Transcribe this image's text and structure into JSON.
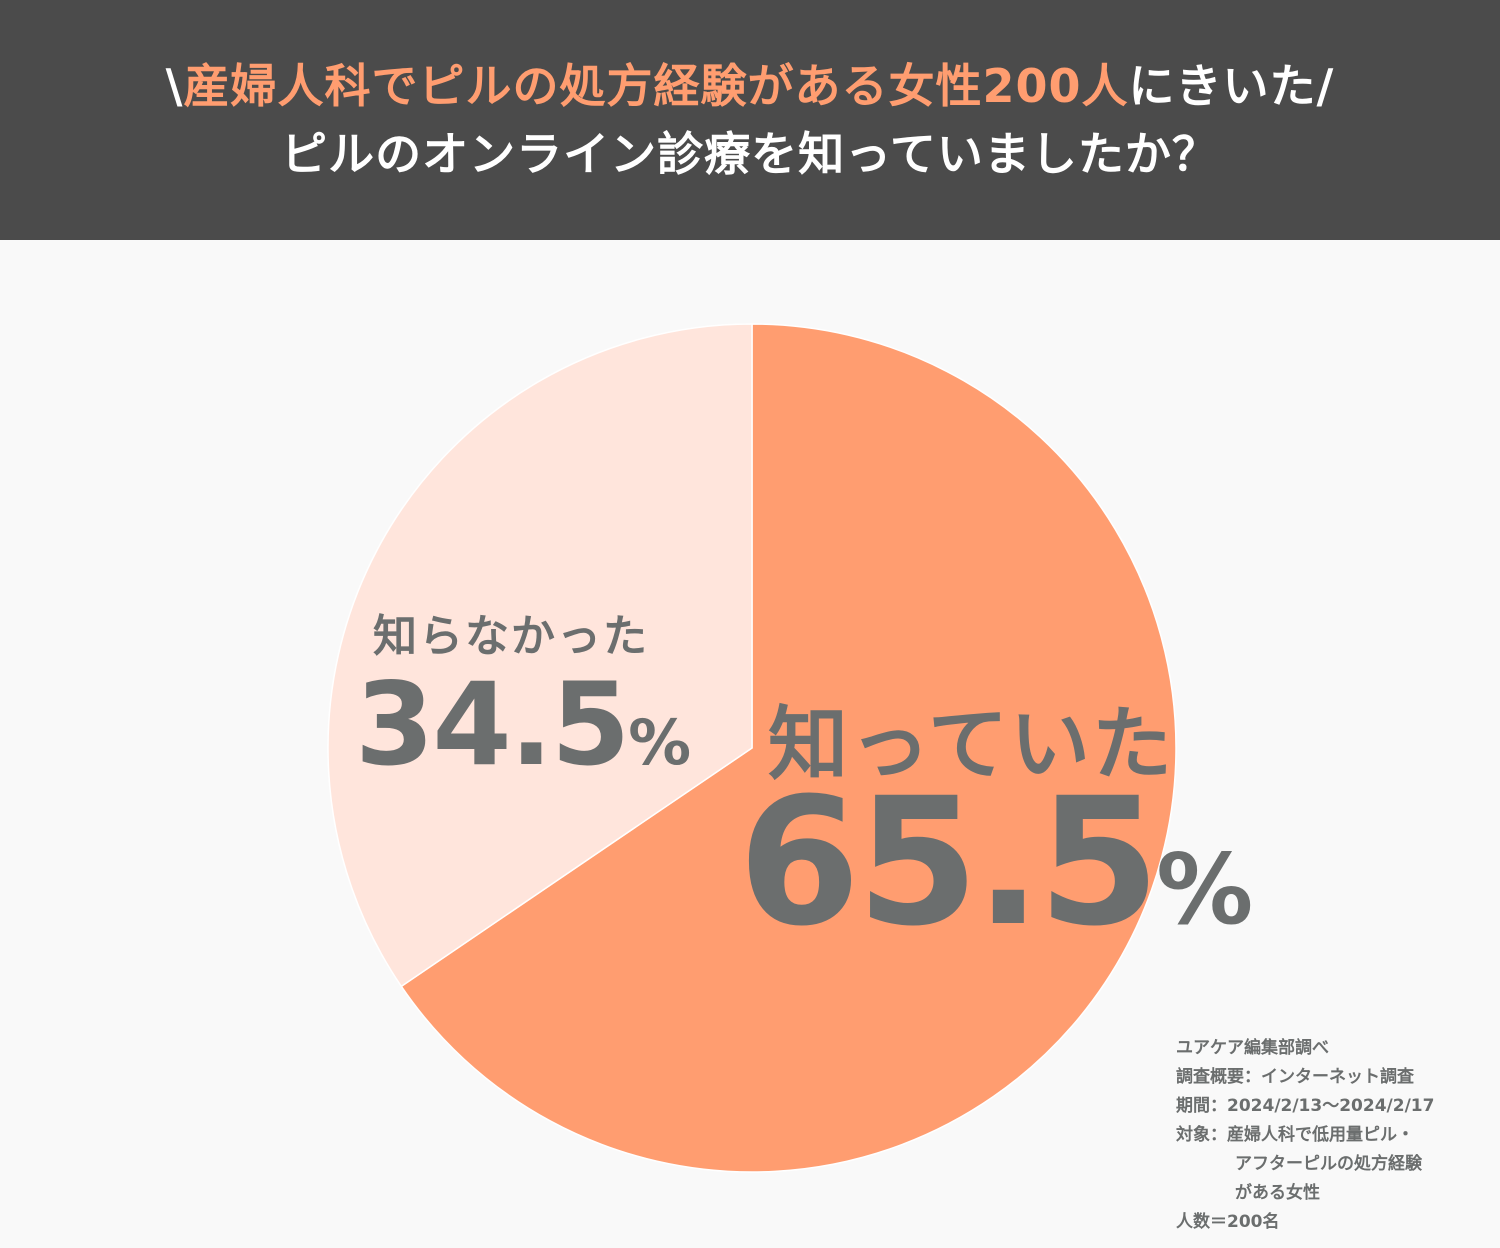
{
  "header": {
    "line1_prefix": "\\",
    "line1_accent": "産婦人科でピルの処方経験がある女性200人",
    "line1_suffix": "にきいた/",
    "line2": "ピルのオンライン診療を知っていましたか？"
  },
  "colors": {
    "header_bg": "#4b4b4b",
    "accent": "#ff9d70",
    "slice_yes": "#ff9d70",
    "slice_no": "#ffe5dc",
    "label_text": "#6b6e6e",
    "background": "#f9f9f9"
  },
  "chart_data": {
    "type": "pie",
    "title": "ピルのオンライン診療を知っていましたか？",
    "slices": [
      {
        "label": "知っていた",
        "value": 65.5,
        "display_value": "65.5",
        "unit": "%"
      },
      {
        "label": "知らなかった",
        "value": 34.5,
        "display_value": "34.5",
        "unit": "%"
      }
    ],
    "start": "12 o'clock",
    "direction": "clockwise",
    "legend": "none"
  },
  "note": {
    "lines": [
      "ユアケア編集部調べ",
      "調査概要：インターネット調査",
      "期間：2024/2/13〜2024/2/17",
      "対象：産婦人科で低用量ピル・",
      "アフターピルの処方経験",
      "がある女性",
      "人数＝200名"
    ]
  }
}
